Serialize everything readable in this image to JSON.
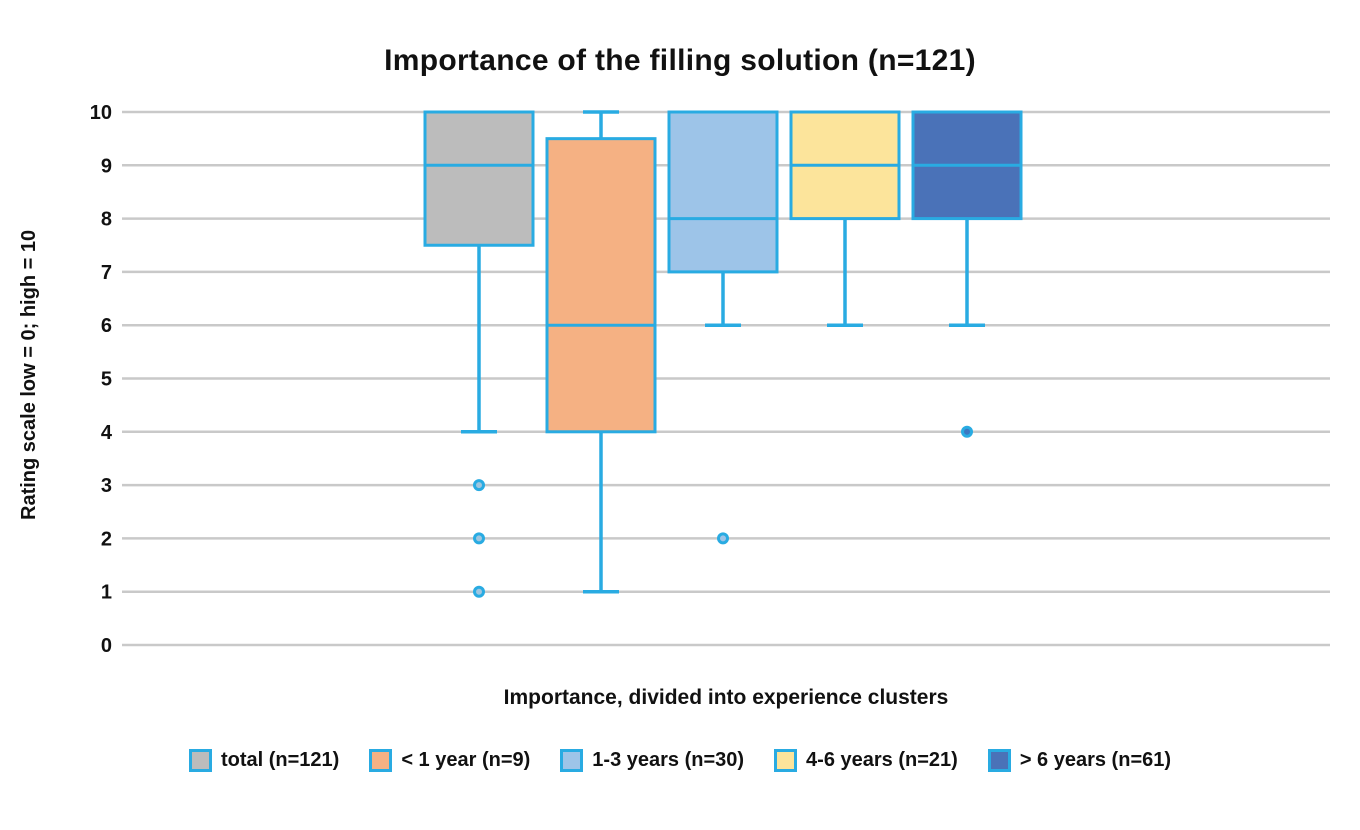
{
  "title": "Importance of the filling solution (n=121)",
  "y_axis": {
    "label": "Rating scale low = 0; high = 10"
  },
  "x_axis": {
    "label": "Importance, divided into experience clusters"
  },
  "colors": {
    "box_border": "#29abe2",
    "whisker": "#29abe2",
    "gridline": "#c9c9c9",
    "text": "#111111",
    "background": "#ffffff"
  },
  "chart_data": {
    "type": "boxplot",
    "title": "Importance of the filling solution (n=121)",
    "xlabel": "Importance, divided into experience clusters",
    "ylabel": "Rating scale low = 0; high = 10",
    "ylim": [
      0,
      10
    ],
    "y_ticks": [
      0,
      1,
      2,
      3,
      4,
      5,
      6,
      7,
      8,
      9,
      10
    ],
    "grid": true,
    "legend_position": "bottom",
    "series": [
      {
        "name": "total (n=121)",
        "fill": "#bcbcbc",
        "whisker_low": 4,
        "q1": 7.5,
        "median": 9,
        "q3": 10,
        "whisker_high": null,
        "outliers": [
          3,
          2,
          1
        ],
        "outlier_fill": "#9fc6df"
      },
      {
        "name": "< 1 year (n=9)",
        "fill": "#f5b183",
        "whisker_low": 1,
        "q1": 4,
        "median": 6,
        "q3": 9.5,
        "whisker_high": 10,
        "outliers": [],
        "outlier_fill": "#f5b183"
      },
      {
        "name": "1-3 years (n=30)",
        "fill": "#9dc4e8",
        "whisker_low": 6,
        "q1": 7,
        "median": 8,
        "q3": 10,
        "whisker_high": null,
        "outliers": [
          2
        ],
        "outlier_fill": "#9dc4e8"
      },
      {
        "name": "4-6 years (n=21)",
        "fill": "#fce49b",
        "whisker_low": 6,
        "q1": 8,
        "median": 9,
        "q3": 10,
        "whisker_high": null,
        "outliers": [],
        "outlier_fill": "#fce49b"
      },
      {
        "name": "> 6 years (n=61)",
        "fill": "#4a72b8",
        "whisker_low": 6,
        "q1": 8,
        "median": 9,
        "q3": 10,
        "whisker_high": null,
        "outliers": [
          4
        ],
        "outlier_fill": "#3a78c2"
      }
    ]
  }
}
